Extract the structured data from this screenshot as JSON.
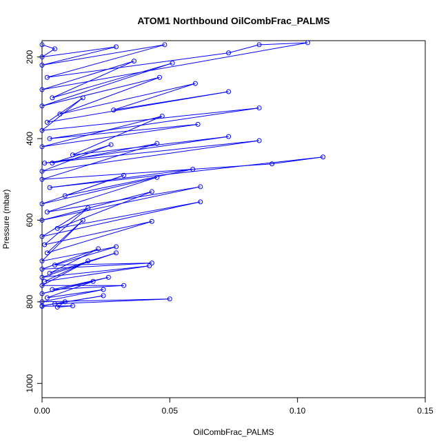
{
  "chart_data": {
    "type": "scatter",
    "title": "ATOM1 Northbound OilCombFrac_PALMS",
    "xlabel": "OilCombFrac_PALMS",
    "ylabel": "Pressure (mbar)",
    "xlim": [
      0.0,
      0.15
    ],
    "ylim": [
      1035,
      160
    ],
    "y_reversed": true,
    "x_ticks": [
      0.0,
      0.05,
      0.1,
      0.15
    ],
    "x_tick_labels": [
      "0.00",
      "0.05",
      "0.10",
      "0.15"
    ],
    "y_ticks": [
      200,
      400,
      600,
      800,
      1000
    ],
    "y_tick_labels": [
      "200",
      "400",
      "600",
      "800",
      "1000"
    ],
    "grid": false,
    "marker": "open-circle",
    "connect_points": true,
    "series_color": "#0000ff",
    "x": [
      0.0,
      0.005,
      0.0,
      0.029,
      0.0,
      0.048,
      0.002,
      0.073,
      0.085,
      0.104,
      0.0,
      0.036,
      0.004,
      0.051,
      0.0,
      0.046,
      0.007,
      0.06,
      0.028,
      0.073,
      0.002,
      0.016,
      0.0,
      0.085,
      0.003,
      0.061,
      0.0,
      0.047,
      0.012,
      0.073,
      0.001,
      0.085,
      0.0,
      0.027,
      0.004,
      0.045,
      0.0,
      0.09,
      0.11,
      0.003,
      0.059,
      0.009,
      0.032,
      0.0,
      0.045,
      0.002,
      0.062,
      0.0,
      0.043,
      0.006,
      0.062,
      0.0,
      0.018,
      0.001,
      0.043,
      0.002,
      0.016,
      0.0,
      0.029,
      0.005,
      0.043,
      0.0,
      0.022,
      0.003,
      0.029,
      0.0,
      0.042,
      0.001,
      0.018,
      0.0,
      0.032,
      0.004,
      0.026,
      0.0,
      0.02,
      0.002,
      0.024,
      0.0,
      0.05,
      0.005,
      0.024,
      0.0,
      0.009,
      0.006,
      0.012,
      0.0
    ],
    "y": [
      170,
      180,
      200,
      175,
      220,
      170,
      250,
      190,
      170,
      165,
      280,
      210,
      300,
      215,
      320,
      250,
      340,
      265,
      330,
      285,
      360,
      300,
      380,
      325,
      400,
      365,
      420,
      345,
      440,
      395,
      460,
      405,
      480,
      415,
      460,
      412,
      500,
      462,
      445,
      520,
      475,
      540,
      490,
      560,
      495,
      580,
      518,
      600,
      530,
      620,
      555,
      640,
      570,
      660,
      603,
      680,
      600,
      700,
      665,
      710,
      705,
      720,
      670,
      730,
      680,
      740,
      712,
      750,
      700,
      760,
      760,
      770,
      740,
      780,
      750,
      790,
      770,
      800,
      793,
      805,
      785,
      810,
      800,
      813,
      810,
      811
    ]
  }
}
